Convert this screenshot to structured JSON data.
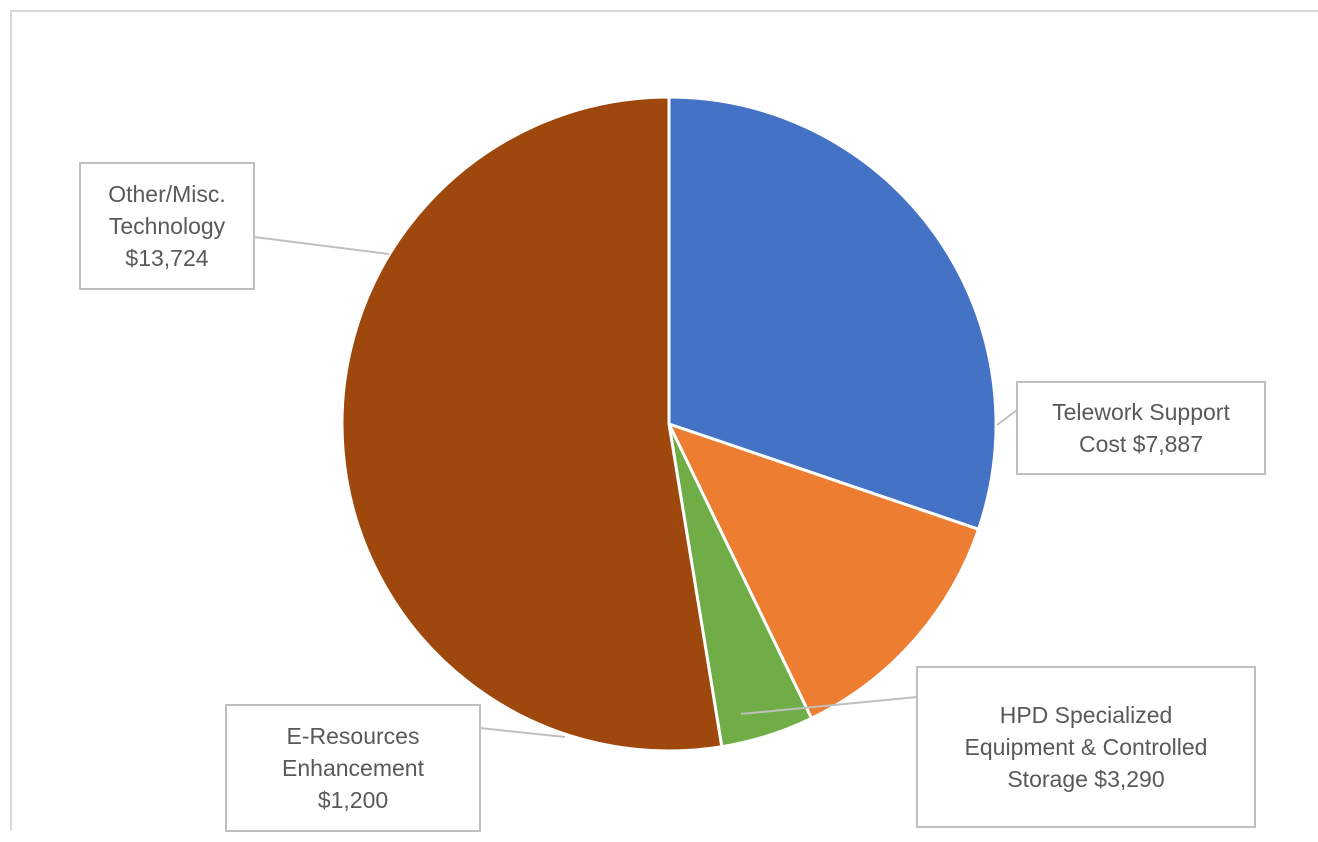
{
  "colors": {
    "border": "#d9d9d9",
    "label_box_border": "#bfbfbf",
    "label_text": "#595959",
    "slice_outline": "#ffffff"
  },
  "chart_data": {
    "type": "pie",
    "title": "",
    "legend": "none",
    "start_angle_deg": 90,
    "direction": "clockwise",
    "slices": [
      {
        "name": "Telework Support Cost",
        "value": 7887,
        "display": "$7,887",
        "color": "#4472c4",
        "label_lines": [
          "Telework Support",
          "Cost $7,887"
        ]
      },
      {
        "name": "HPD Specialized Equipment & Controlled Storage",
        "value": 3290,
        "display": "$3,290",
        "color": "#ed7d31",
        "label_lines": [
          "HPD Specialized",
          "Equipment & Controlled",
          "Storage $3,290"
        ]
      },
      {
        "name": "E-Resources Enhancement",
        "value": 1200,
        "display": "$1,200",
        "color": "#70ad47",
        "label_lines": [
          "E-Resources",
          "Enhancement",
          "$1,200"
        ]
      },
      {
        "name": "Other/Misc. Technology",
        "value": 13724,
        "display": "$13,724",
        "color": "#9e480e",
        "label_lines": [
          "Other/Misc.",
          "Technology",
          "$13,724"
        ]
      }
    ]
  }
}
